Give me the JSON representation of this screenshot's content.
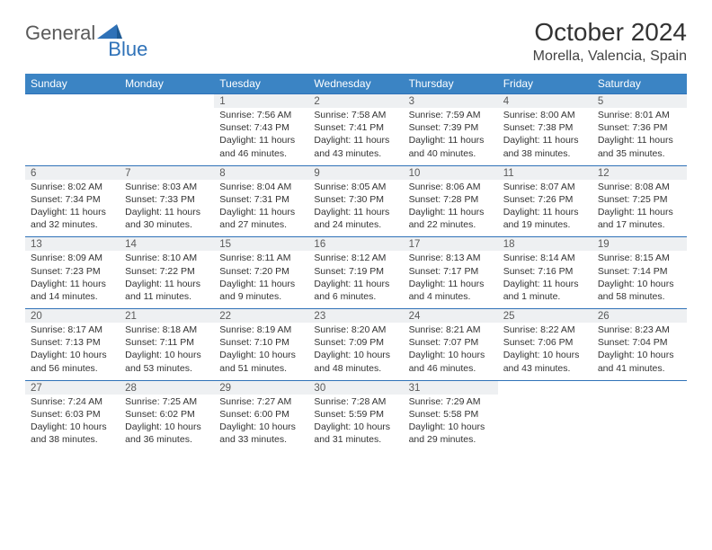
{
  "logo": {
    "text1": "General",
    "text2": "Blue"
  },
  "title": "October 2024",
  "location": "Morella, Valencia, Spain",
  "colors": {
    "header_bg": "#3b84c4",
    "header_text": "#ffffff",
    "daynum_bg": "#eef0f2",
    "border": "#2f72b8",
    "logo_gray": "#5a5a5a",
    "logo_blue": "#2f72b8"
  },
  "day_headers": [
    "Sunday",
    "Monday",
    "Tuesday",
    "Wednesday",
    "Thursday",
    "Friday",
    "Saturday"
  ],
  "weeks": [
    {
      "nums": [
        "",
        "",
        "1",
        "2",
        "3",
        "4",
        "5"
      ],
      "cells": [
        "",
        "",
        "Sunrise: 7:56 AM\nSunset: 7:43 PM\nDaylight: 11 hours and 46 minutes.",
        "Sunrise: 7:58 AM\nSunset: 7:41 PM\nDaylight: 11 hours and 43 minutes.",
        "Sunrise: 7:59 AM\nSunset: 7:39 PM\nDaylight: 11 hours and 40 minutes.",
        "Sunrise: 8:00 AM\nSunset: 7:38 PM\nDaylight: 11 hours and 38 minutes.",
        "Sunrise: 8:01 AM\nSunset: 7:36 PM\nDaylight: 11 hours and 35 minutes."
      ]
    },
    {
      "nums": [
        "6",
        "7",
        "8",
        "9",
        "10",
        "11",
        "12"
      ],
      "cells": [
        "Sunrise: 8:02 AM\nSunset: 7:34 PM\nDaylight: 11 hours and 32 minutes.",
        "Sunrise: 8:03 AM\nSunset: 7:33 PM\nDaylight: 11 hours and 30 minutes.",
        "Sunrise: 8:04 AM\nSunset: 7:31 PM\nDaylight: 11 hours and 27 minutes.",
        "Sunrise: 8:05 AM\nSunset: 7:30 PM\nDaylight: 11 hours and 24 minutes.",
        "Sunrise: 8:06 AM\nSunset: 7:28 PM\nDaylight: 11 hours and 22 minutes.",
        "Sunrise: 8:07 AM\nSunset: 7:26 PM\nDaylight: 11 hours and 19 minutes.",
        "Sunrise: 8:08 AM\nSunset: 7:25 PM\nDaylight: 11 hours and 17 minutes."
      ]
    },
    {
      "nums": [
        "13",
        "14",
        "15",
        "16",
        "17",
        "18",
        "19"
      ],
      "cells": [
        "Sunrise: 8:09 AM\nSunset: 7:23 PM\nDaylight: 11 hours and 14 minutes.",
        "Sunrise: 8:10 AM\nSunset: 7:22 PM\nDaylight: 11 hours and 11 minutes.",
        "Sunrise: 8:11 AM\nSunset: 7:20 PM\nDaylight: 11 hours and 9 minutes.",
        "Sunrise: 8:12 AM\nSunset: 7:19 PM\nDaylight: 11 hours and 6 minutes.",
        "Sunrise: 8:13 AM\nSunset: 7:17 PM\nDaylight: 11 hours and 4 minutes.",
        "Sunrise: 8:14 AM\nSunset: 7:16 PM\nDaylight: 11 hours and 1 minute.",
        "Sunrise: 8:15 AM\nSunset: 7:14 PM\nDaylight: 10 hours and 58 minutes."
      ]
    },
    {
      "nums": [
        "20",
        "21",
        "22",
        "23",
        "24",
        "25",
        "26"
      ],
      "cells": [
        "Sunrise: 8:17 AM\nSunset: 7:13 PM\nDaylight: 10 hours and 56 minutes.",
        "Sunrise: 8:18 AM\nSunset: 7:11 PM\nDaylight: 10 hours and 53 minutes.",
        "Sunrise: 8:19 AM\nSunset: 7:10 PM\nDaylight: 10 hours and 51 minutes.",
        "Sunrise: 8:20 AM\nSunset: 7:09 PM\nDaylight: 10 hours and 48 minutes.",
        "Sunrise: 8:21 AM\nSunset: 7:07 PM\nDaylight: 10 hours and 46 minutes.",
        "Sunrise: 8:22 AM\nSunset: 7:06 PM\nDaylight: 10 hours and 43 minutes.",
        "Sunrise: 8:23 AM\nSunset: 7:04 PM\nDaylight: 10 hours and 41 minutes."
      ]
    },
    {
      "nums": [
        "27",
        "28",
        "29",
        "30",
        "31",
        "",
        ""
      ],
      "cells": [
        "Sunrise: 7:24 AM\nSunset: 6:03 PM\nDaylight: 10 hours and 38 minutes.",
        "Sunrise: 7:25 AM\nSunset: 6:02 PM\nDaylight: 10 hours and 36 minutes.",
        "Sunrise: 7:27 AM\nSunset: 6:00 PM\nDaylight: 10 hours and 33 minutes.",
        "Sunrise: 7:28 AM\nSunset: 5:59 PM\nDaylight: 10 hours and 31 minutes.",
        "Sunrise: 7:29 AM\nSunset: 5:58 PM\nDaylight: 10 hours and 29 minutes.",
        "",
        ""
      ]
    }
  ]
}
